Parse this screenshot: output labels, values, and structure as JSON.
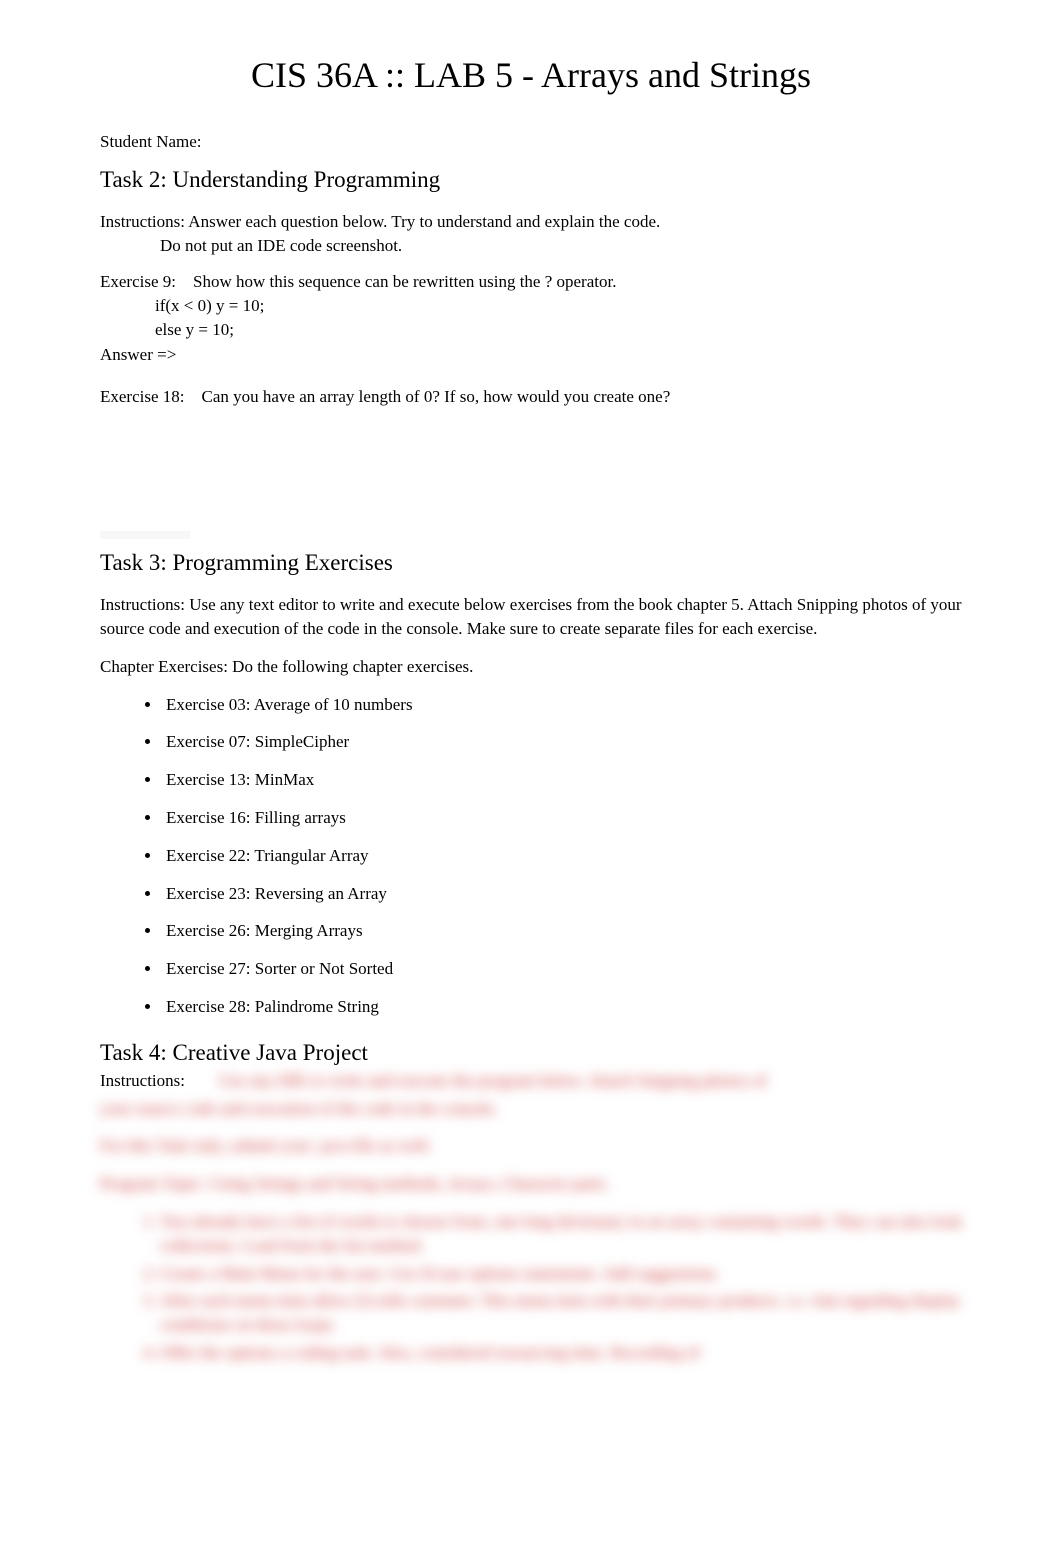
{
  "title": "CIS 36A :: LAB 5 - Arrays and Strings",
  "student_name_label": "Student Name:",
  "task2": {
    "heading": "Task 2: Understanding Programming",
    "instructions": "Instructions: Answer each question below. Try to understand and explain the code.",
    "warning": "Do not put an IDE code screenshot.",
    "exercise9": {
      "label": "Exercise 9:",
      "prompt": "Show how this sequence can be rewritten using the ? operator.",
      "code_line1": "if(x < 0) y = 10;",
      "code_line2": "else y = 10;"
    },
    "answer_label": "Answer =>",
    "exercise18": {
      "label": "Exercise 18:",
      "prompt": "Can you have an array length of 0? If so, how would you create one?"
    }
  },
  "task3": {
    "heading": "Task 3: Programming Exercises",
    "instructions": "Instructions: Use any text editor to write and execute below exercises from the book chapter 5. Attach Snipping photos of your source code and execution of the code in the console. Make sure to create separate files for each exercise.",
    "chapter_label": "Chapter Exercises: Do the following chapter exercises.",
    "exercises": [
      "Exercise 03: Average of 10 numbers",
      "Exercise 07: SimpleCipher",
      "Exercise 13: MinMax",
      "Exercise 16: Filling arrays",
      "Exercise 22: Triangular Array",
      "Exercise 23: Reversing an Array",
      "Exercise 26: Merging Arrays",
      "Exercise 27: Sorter or Not Sorted",
      "Exercise 28: Palindrome String"
    ]
  },
  "task4": {
    "heading": "Task 4: Creative Java Project",
    "instructions_label": "Instructions:",
    "blurred": {
      "line1": "Use any IDE to write and execute the program below. Attach Snipping photos of",
      "line2": "your source code and execution of the code in the console.",
      "line3": "For this Task only, submit your .java file as well.",
      "line4": "Program Topic:      Using Strings and String methods, Arrays, Character parts.",
      "list_items": [
        "You already have a list of words to choose from, one long dictionary in an array containing words. They can also look collections. Load from the list method.",
        "Create a Main Menu for the user. Use if/case options statements. Add suggestions.",
        "After each menu item allow (5) tells customer. This menu item with their primary products.  i.e.  Ask regarding display conditions on these loops.",
        "Offer the options a coding task. Also, considered resourcing time. Recording of"
      ]
    }
  },
  "colors": {
    "text": "#000000",
    "background": "#ffffff",
    "blurred_text": "#cc3333"
  }
}
